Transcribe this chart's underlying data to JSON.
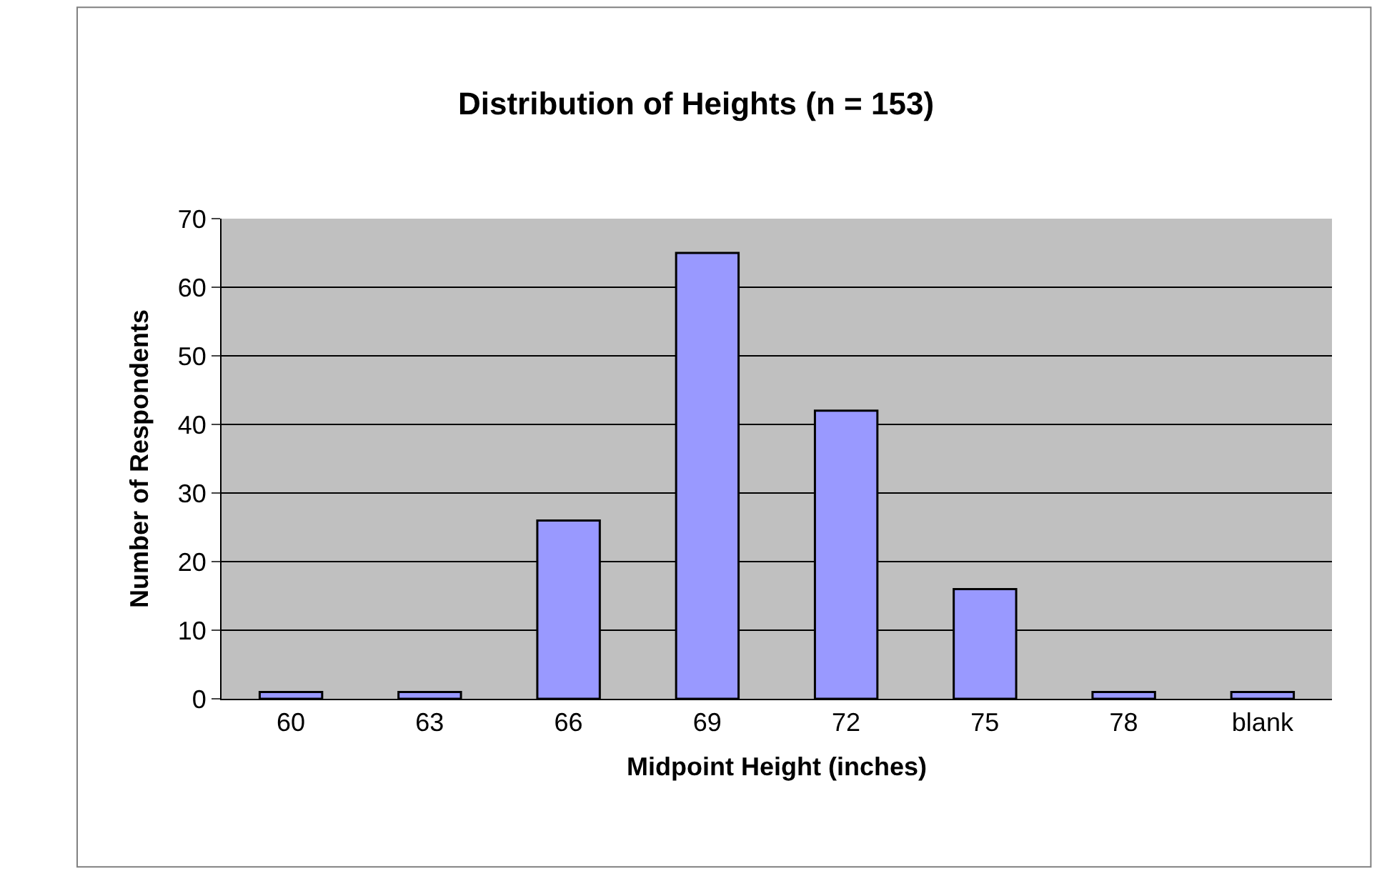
{
  "chart_data": {
    "type": "bar",
    "title": "Distribution of Heights (n = 153)",
    "xlabel": "Midpoint Height (inches)",
    "ylabel": "Number of Respondents",
    "categories": [
      "60",
      "63",
      "66",
      "69",
      "72",
      "75",
      "78",
      "blank"
    ],
    "values": [
      1,
      1,
      26,
      65,
      42,
      16,
      1,
      1
    ],
    "color": "#9999ff",
    "ylim": [
      0,
      70
    ],
    "yticks": [
      0,
      10,
      20,
      30,
      40,
      50,
      60,
      70
    ],
    "grid": "y",
    "legend": false
  }
}
